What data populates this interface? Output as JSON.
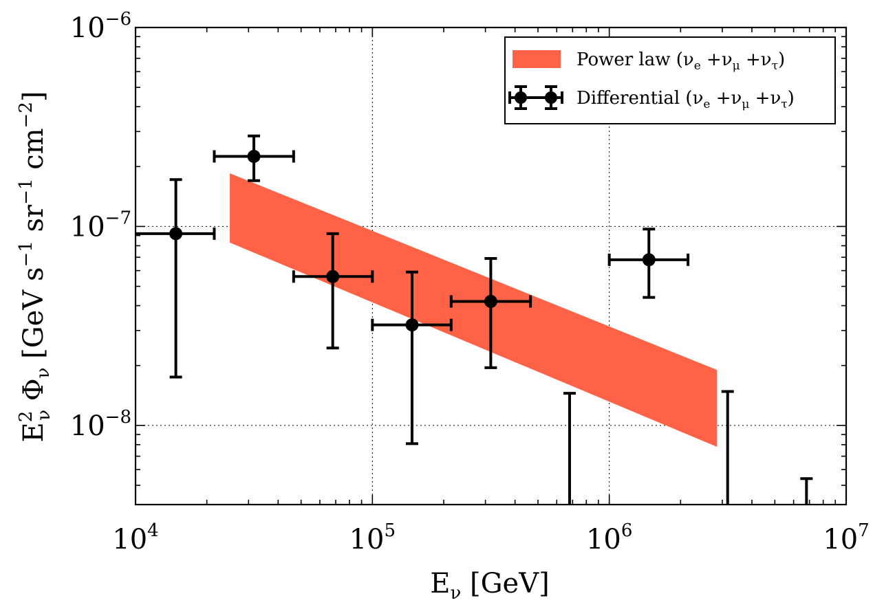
{
  "chart_data": {
    "type": "scatter",
    "x_scale": "log",
    "y_scale": "log",
    "xlim": [
      10000,
      10000000
    ],
    "ylim": [
      4e-09,
      1e-06
    ],
    "grid": "major, dotted",
    "legend_placement": "top-right",
    "x_ticks": [
      {
        "value": 10000,
        "base": "10",
        "exp": "4"
      },
      {
        "value": 100000,
        "base": "10",
        "exp": "5"
      },
      {
        "value": 1000000,
        "base": "10",
        "exp": "6"
      },
      {
        "value": 10000000,
        "base": "10",
        "exp": "7"
      }
    ],
    "y_ticks": [
      {
        "value": 1e-08,
        "base": "10",
        "exp": "−8"
      },
      {
        "value": 1e-07,
        "base": "10",
        "exp": "−7"
      },
      {
        "value": 1e-06,
        "base": "10",
        "exp": "−6"
      }
    ],
    "xlabel": {
      "E": "E",
      "sub": "ν",
      "rest": " [GeV]"
    },
    "ylabel": {
      "E": "E",
      "E_sup": "2",
      "E_sub": "ν",
      "Phi": " Φ",
      "Phi_sub": "ν",
      "units_open": "  [GeV s",
      "s_exp": "−1",
      "sr": " sr",
      "sr_exp": "−1",
      "cm": " cm",
      "cm_exp": "−2",
      "units_close": "]"
    },
    "series": [
      {
        "name_parts": {
          "label": "Power law (",
          "nu1": "ν",
          "sub1": "e",
          "plus1": " +",
          "nu2": "ν",
          "sub2": "μ",
          "plus2": " +",
          "nu3": "ν",
          "sub3": "τ",
          "close": ")"
        },
        "type": "band",
        "color": "#ff6347",
        "band": [
          {
            "x": 25000,
            "low": 8.3e-08,
            "high": 1.85e-07
          },
          {
            "x": 2850000,
            "low": 7.8e-09,
            "high": 1.9e-08
          }
        ]
      },
      {
        "name_parts": {
          "label": "Differential (",
          "nu1": "ν",
          "sub1": "e",
          "plus1": " +",
          "nu2": "ν",
          "sub2": "μ",
          "plus2": " +",
          "nu3": "ν",
          "sub3": "τ",
          "close": ")"
        },
        "type": "errorbar",
        "color": "#000000",
        "points": [
          {
            "x": 14800,
            "y": 9.2e-08,
            "xlow": 10000,
            "xhigh": 21500,
            "ylow": 1.75e-08,
            "yhigh": 1.72e-07
          },
          {
            "x": 31600,
            "y": 2.25e-07,
            "xlow": 21500,
            "xhigh": 46500,
            "ylow": 1.7e-07,
            "yhigh": 2.85e-07
          },
          {
            "x": 68000,
            "y": 5.6e-08,
            "xlow": 46500,
            "xhigh": 100000,
            "ylow": 2.45e-08,
            "yhigh": 9.2e-08
          },
          {
            "x": 147000,
            "y": 3.2e-08,
            "xlow": 100000,
            "xhigh": 215000,
            "ylow": 8.1e-09,
            "yhigh": 5.9e-08
          },
          {
            "x": 316000,
            "y": 4.2e-08,
            "xlow": 215000,
            "xhigh": 465000,
            "ylow": 1.95e-08,
            "yhigh": 6.9e-08
          },
          {
            "x": 1470000,
            "y": 6.8e-08,
            "xlow": 1000000,
            "xhigh": 2150000,
            "ylow": 4.4e-08,
            "yhigh": 9.7e-08
          }
        ],
        "upper_limits": [
          {
            "x": 680000,
            "y": 1.45e-08
          },
          {
            "x": 3160000,
            "y": 1.48e-08
          },
          {
            "x": 6800000,
            "y": 5.4e-09
          }
        ]
      }
    ]
  }
}
